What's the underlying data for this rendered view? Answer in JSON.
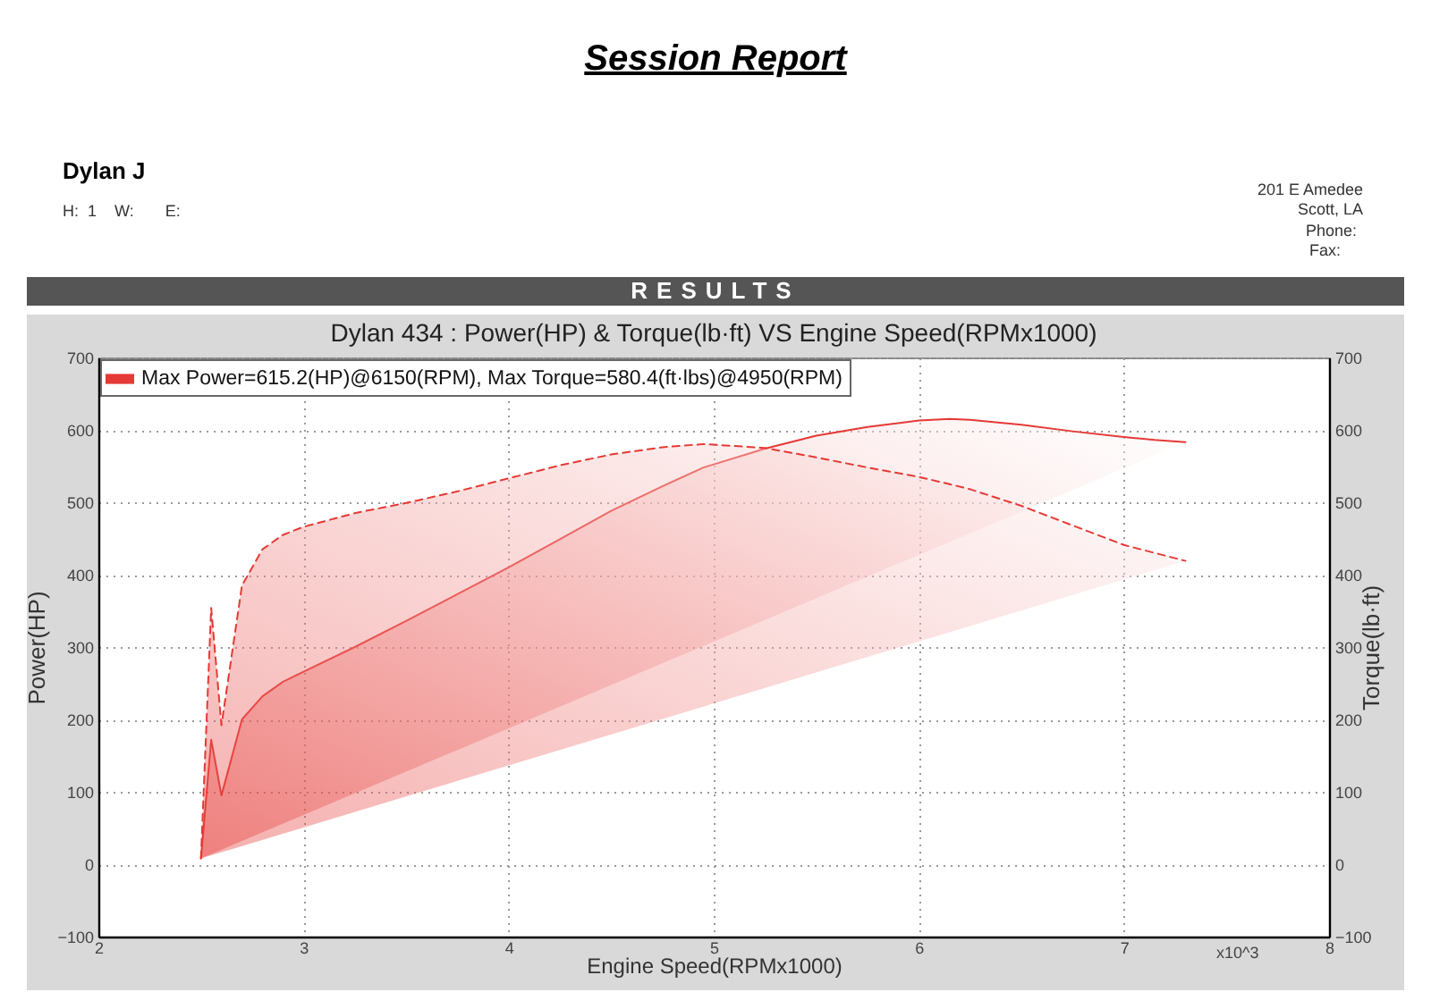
{
  "chart_data": {
    "type": "line",
    "title": "Dylan 434 : Power(HP) & Torque(lb·ft) VS Engine Speed(RPMx1000)",
    "xlabel": "Engine Speed(RPMx1000)",
    "ylabel": "Power(HP)",
    "y2label": "Torque(lb·ft)",
    "x": [
      2.5,
      2.55,
      2.6,
      2.7,
      2.8,
      2.9,
      3.0,
      3.25,
      3.5,
      3.75,
      4.0,
      4.25,
      4.5,
      4.75,
      4.95,
      5.25,
      5.5,
      5.75,
      6.0,
      6.15,
      6.25,
      6.5,
      6.75,
      7.0,
      7.15,
      7.3
    ],
    "series": [
      {
        "name": "Max Power=615.2(HP)@6150(RPM), Max Torque=580.4(ft·lbs)@4950(RPM)",
        "color": "#e53935",
        "line_style": "solid",
        "values": [
          8,
          172,
          95,
          200,
          232,
          252,
          266,
          300,
          336,
          373,
          410,
          449,
          488,
          522,
          548,
          574,
          592,
          604,
          613,
          615.2,
          614,
          607,
          598,
          590,
          586,
          583
        ]
      },
      {
        "color": "#e53935",
        "axis": "y2",
        "line_style": "dashed",
        "values": [
          8,
          354,
          192,
          385,
          435,
          455,
          466,
          485,
          499,
          515,
          533,
          551,
          566,
          576,
          580.4,
          575,
          562,
          548,
          535,
          525,
          518,
          495,
          468,
          441,
          430,
          419
        ]
      }
    ],
    "xlim": [
      2,
      8
    ],
    "xticks": [
      2,
      3,
      4,
      5,
      6,
      7,
      8
    ],
    "ylim": [
      -100,
      700
    ],
    "yticks": [
      -100,
      0,
      100,
      200,
      300,
      400,
      500,
      600,
      700
    ],
    "y2lim": [
      -100,
      700
    ],
    "y2ticks": [
      -100,
      0,
      100,
      200,
      300,
      400,
      500,
      600,
      700
    ],
    "grid": true,
    "legend": "top left",
    "annotations": [
      "Session Report",
      "Dylan J",
      "H:  1    W:       E:",
      "201 E Amedee",
      "Scott, LA",
      "Phone:",
      "Fax:",
      "RESULTS",
      "x10^3"
    ]
  }
}
